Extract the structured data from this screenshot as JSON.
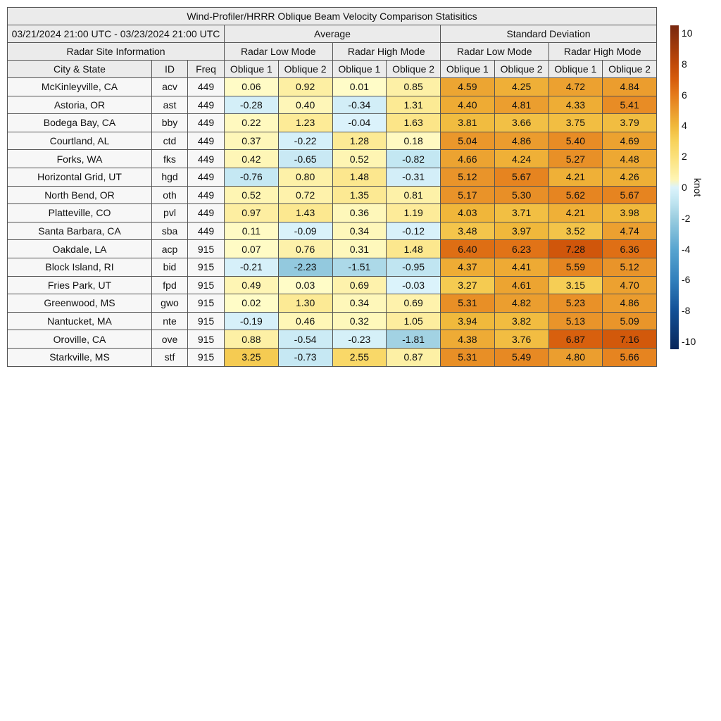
{
  "chart_data": {
    "type": "table",
    "title": "Wind-Profiler/HRRR Oblique Beam Velocity Comparison Statisitics",
    "period": "03/21/2024 21:00 UTC - 03/23/2024 21:00 UTC",
    "groups": [
      "Average",
      "Standard Deviation"
    ],
    "site_header": "Radar Site Information",
    "modes": [
      "Radar Low Mode",
      "Radar High Mode",
      "Radar Low Mode",
      "Radar High Mode"
    ],
    "columns": [
      "City & State",
      "ID",
      "Freq",
      "Oblique 1",
      "Oblique 2",
      "Oblique 1",
      "Oblique 2",
      "Oblique 1",
      "Oblique 2",
      "Oblique 1",
      "Oblique 2"
    ],
    "rows": [
      [
        "McKinleyville, CA",
        "acv",
        "449",
        [
          "0.06",
          "0.92",
          "0.01",
          "0.85",
          "4.59",
          "4.25",
          "4.72",
          "4.84"
        ]
      ],
      [
        "Astoria, OR",
        "ast",
        "449",
        [
          "-0.28",
          "0.40",
          "-0.34",
          "1.31",
          "4.40",
          "4.81",
          "4.33",
          "5.41"
        ]
      ],
      [
        "Bodega Bay, CA",
        "bby",
        "449",
        [
          "0.22",
          "1.23",
          "-0.04",
          "1.63",
          "3.81",
          "3.66",
          "3.75",
          "3.79"
        ]
      ],
      [
        "Courtland, AL",
        "ctd",
        "449",
        [
          "0.37",
          "-0.22",
          "1.28",
          "0.18",
          "5.04",
          "4.86",
          "5.40",
          "4.69"
        ]
      ],
      [
        "Forks, WA",
        "fks",
        "449",
        [
          "0.42",
          "-0.65",
          "0.52",
          "-0.82",
          "4.66",
          "4.24",
          "5.27",
          "4.48"
        ]
      ],
      [
        "Horizontal Grid, UT",
        "hgd",
        "449",
        [
          "-0.76",
          "0.80",
          "1.48",
          "-0.31",
          "5.12",
          "5.67",
          "4.21",
          "4.26"
        ]
      ],
      [
        "North Bend, OR",
        "oth",
        "449",
        [
          "0.52",
          "0.72",
          "1.35",
          "0.81",
          "5.17",
          "5.30",
          "5.62",
          "5.67"
        ]
      ],
      [
        "Platteville, CO",
        "pvl",
        "449",
        [
          "0.97",
          "1.43",
          "0.36",
          "1.19",
          "4.03",
          "3.71",
          "4.21",
          "3.98"
        ]
      ],
      [
        "Santa Barbara, CA",
        "sba",
        "449",
        [
          "0.11",
          "-0.09",
          "0.34",
          "-0.12",
          "3.48",
          "3.97",
          "3.52",
          "4.74"
        ]
      ],
      [
        "Oakdale, LA",
        "acp",
        "915",
        [
          "0.07",
          "0.76",
          "0.31",
          "1.48",
          "6.40",
          "6.23",
          "7.28",
          "6.36"
        ]
      ],
      [
        "Block Island, RI",
        "bid",
        "915",
        [
          "-0.21",
          "-2.23",
          "-1.51",
          "-0.95",
          "4.37",
          "4.41",
          "5.59",
          "5.12"
        ]
      ],
      [
        "Fries Park, UT",
        "fpd",
        "915",
        [
          "0.49",
          "0.03",
          "0.69",
          "-0.03",
          "3.27",
          "4.61",
          "3.15",
          "4.70"
        ]
      ],
      [
        "Greenwood, MS",
        "gwo",
        "915",
        [
          "0.02",
          "1.30",
          "0.34",
          "0.69",
          "5.31",
          "4.82",
          "5.23",
          "4.86"
        ]
      ],
      [
        "Nantucket, MA",
        "nte",
        "915",
        [
          "-0.19",
          "0.46",
          "0.32",
          "1.05",
          "3.94",
          "3.82",
          "5.13",
          "5.09"
        ]
      ],
      [
        "Oroville, CA",
        "ove",
        "915",
        [
          "0.88",
          "-0.54",
          "-0.23",
          "-1.81",
          "4.38",
          "3.76",
          "6.87",
          "7.16"
        ]
      ],
      [
        "Starkville, MS",
        "stf",
        "915",
        [
          "3.25",
          "-0.73",
          "2.55",
          "0.87",
          "5.31",
          "5.49",
          "4.80",
          "5.66"
        ]
      ]
    ],
    "colorbar": {
      "label": "knot",
      "range": [
        -10.5,
        10.5
      ],
      "ticks": [
        "10",
        "8",
        "6",
        "4",
        "2",
        "0",
        "-2",
        "-4",
        "-6",
        "-8",
        "-10"
      ]
    }
  }
}
